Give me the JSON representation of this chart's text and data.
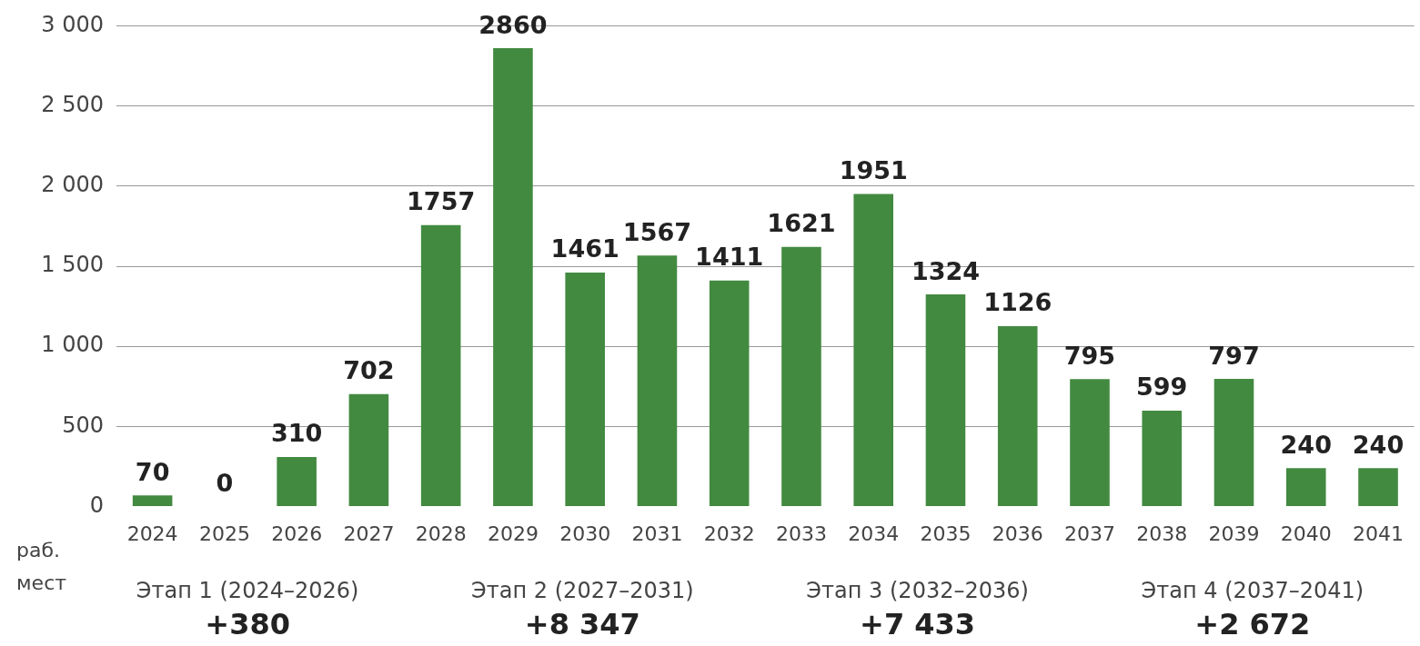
{
  "chart_data": {
    "type": "bar",
    "ylabel": "раб. мест",
    "categories": [
      "2024",
      "2025",
      "2026",
      "2027",
      "2028",
      "2029",
      "2030",
      "2031",
      "2032",
      "2033",
      "2034",
      "2035",
      "2036",
      "2037",
      "2038",
      "2039",
      "2040",
      "2041"
    ],
    "values": [
      70,
      0,
      310,
      702,
      1757,
      2860,
      1461,
      1567,
      1411,
      1621,
      1951,
      1324,
      1126,
      795,
      599,
      797,
      240,
      240
    ],
    "color": "#428a40",
    "data_labels": true,
    "grid": "y",
    "ylim": [
      0,
      3000
    ],
    "yticks": [
      {
        "value": 0,
        "label": "0"
      },
      {
        "value": 500,
        "label": "500"
      },
      {
        "value": 1000,
        "label": "1 000"
      },
      {
        "value": 1500,
        "label": "1 500"
      },
      {
        "value": 2000,
        "label": "2 000"
      },
      {
        "value": 2500,
        "label": "2 500"
      },
      {
        "value": 3000,
        "label": "3 000"
      }
    ],
    "annotations": [
      "Этап 1 (2024–2026)",
      "+380",
      "Этап 2 (2027–2031)",
      "+8 347",
      "Этап 3 (2032–2036)",
      "+7 433",
      "Этап 4 (2037–2041)",
      "+2 672"
    ]
  }
}
